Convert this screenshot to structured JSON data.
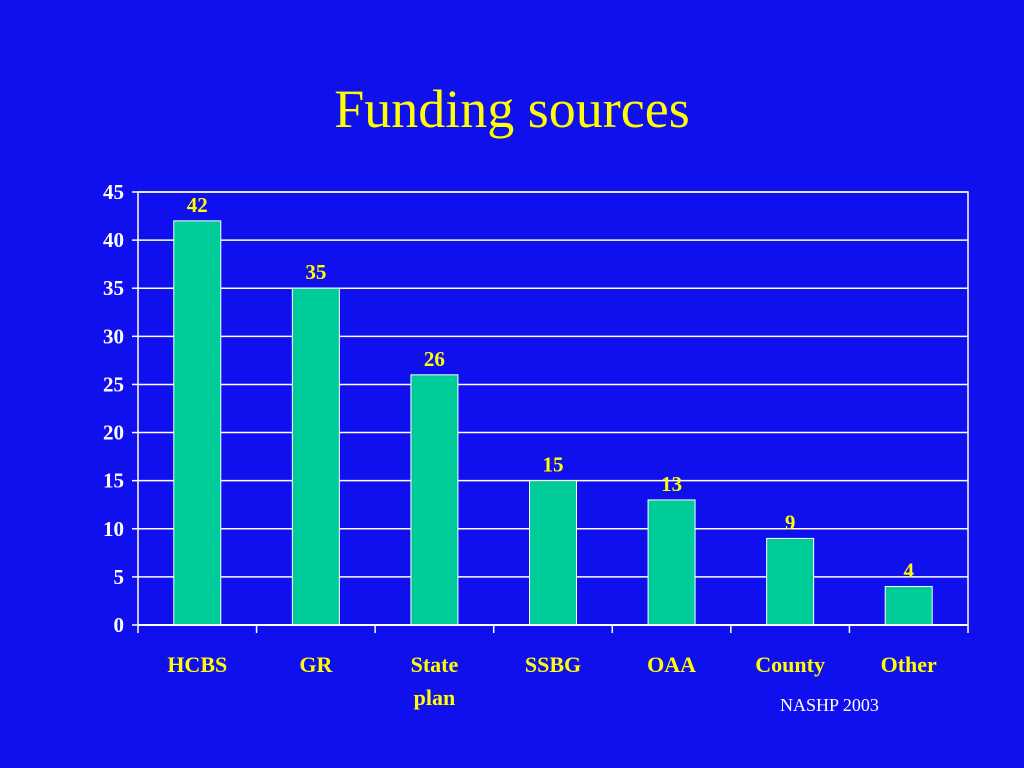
{
  "slide": {
    "title": "Funding sources",
    "source_note": "NASHP 2003"
  },
  "colors": {
    "background": "#1010ee",
    "bar_fill": "#00cc99",
    "title_text": "#ffff00",
    "labels_text": "#ffff00",
    "axis_text": "#ffffff",
    "grid_lines": "#ffffff"
  },
  "chart_data": {
    "type": "bar",
    "title": "",
    "xlabel": "",
    "ylabel": "",
    "categories": [
      "HCBS",
      "GR",
      "State plan",
      "SSBG",
      "OAA",
      "County",
      "Other"
    ],
    "values": [
      42,
      35,
      26,
      15,
      13,
      9,
      4
    ],
    "ylim": [
      0,
      45
    ],
    "yticks": [
      0,
      5,
      10,
      15,
      20,
      25,
      30,
      35,
      40,
      45
    ],
    "grid": true,
    "legend": "none",
    "data_labels": true
  }
}
